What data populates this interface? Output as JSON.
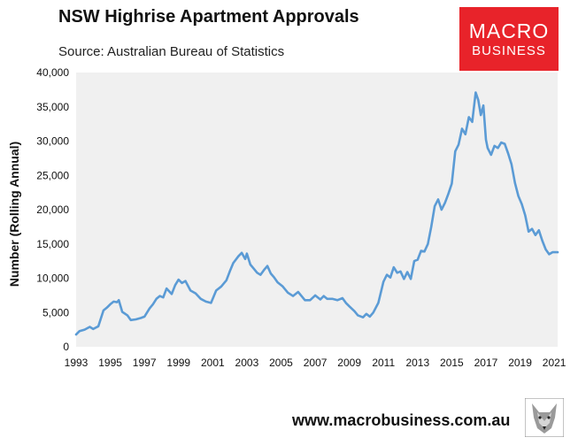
{
  "header": {
    "title": "NSW Highrise Apartment Approvals",
    "subtitle": "Source: Australian Bureau of Statistics"
  },
  "logo": {
    "line1": "MACRO",
    "line2": "BUSINESS",
    "bg_color": "#e8232a"
  },
  "footer": {
    "url": "www.macrobusiness.com.au",
    "icon": "wolf-icon"
  },
  "chart_data": {
    "type": "line",
    "title": "NSW Highrise Apartment Approvals",
    "xlabel": "",
    "ylabel": "Number (Rolling Annual)",
    "xlim": [
      1993,
      2021.2
    ],
    "ylim": [
      0,
      40000
    ],
    "x_ticks": [
      "1993",
      "1995",
      "1997",
      "1999",
      "2001",
      "2003",
      "2005",
      "2007",
      "2009",
      "2011",
      "2013",
      "2015",
      "2017",
      "2019",
      "2021"
    ],
    "y_ticks": [
      "0",
      "5,000",
      "10,000",
      "15,000",
      "20,000",
      "25,000",
      "30,000",
      "35,000",
      "40,000"
    ],
    "grid": false,
    "plot_background": "#f0f0f0",
    "series": [
      {
        "color": "#5b9bd5",
        "x": [
          1993.0,
          1993.2,
          1993.5,
          1993.8,
          1994.0,
          1994.3,
          1994.6,
          1994.8,
          1995.0,
          1995.2,
          1995.4,
          1995.5,
          1995.7,
          1996.0,
          1996.2,
          1996.5,
          1996.8,
          1997.0,
          1997.3,
          1997.5,
          1997.7,
          1997.9,
          1998.1,
          1998.3,
          1998.6,
          1998.8,
          1999.0,
          1999.2,
          1999.4,
          1999.7,
          2000.0,
          2000.3,
          2000.6,
          2000.9,
          2001.2,
          2001.5,
          2001.8,
          2002.0,
          2002.2,
          2002.5,
          2002.7,
          2002.9,
          2003.0,
          2003.2,
          2003.4,
          2003.6,
          2003.8,
          2004.0,
          2004.2,
          2004.4,
          2004.6,
          2004.8,
          2005.1,
          2005.4,
          2005.7,
          2006.0,
          2006.2,
          2006.4,
          2006.7,
          2007.0,
          2007.3,
          2007.5,
          2007.7,
          2008.0,
          2008.3,
          2008.6,
          2008.8,
          2009.0,
          2009.3,
          2009.5,
          2009.8,
          2010.0,
          2010.2,
          2010.4,
          2010.7,
          2011.0,
          2011.2,
          2011.4,
          2011.6,
          2011.8,
          2012.0,
          2012.2,
          2012.4,
          2012.6,
          2012.8,
          2013.0,
          2013.2,
          2013.4,
          2013.6,
          2013.8,
          2014.0,
          2014.2,
          2014.4,
          2014.6,
          2014.8,
          2015.0,
          2015.2,
          2015.4,
          2015.6,
          2015.8,
          2016.0,
          2016.2,
          2016.4,
          2016.55,
          2016.7,
          2016.85,
          2017.0,
          2017.1,
          2017.3,
          2017.5,
          2017.7,
          2017.9,
          2018.1,
          2018.3,
          2018.5,
          2018.7,
          2018.9,
          2019.1,
          2019.3,
          2019.5,
          2019.7,
          2019.9,
          2020.1,
          2020.3,
          2020.5,
          2020.7,
          2020.9,
          2021.0,
          2021.2
        ],
        "y": [
          1800,
          2300,
          2500,
          2900,
          2600,
          3000,
          5300,
          5700,
          6200,
          6600,
          6500,
          6800,
          5100,
          4600,
          3900,
          4000,
          4200,
          4400,
          5600,
          6200,
          7000,
          7400,
          7200,
          8500,
          7700,
          9000,
          9800,
          9300,
          9600,
          8200,
          7800,
          7000,
          6600,
          6400,
          8200,
          8800,
          9700,
          11000,
          12200,
          13200,
          13700,
          12800,
          13600,
          12000,
          11400,
          10800,
          10500,
          11200,
          11800,
          10700,
          10100,
          9400,
          8800,
          7900,
          7400,
          8000,
          7400,
          6800,
          6800,
          7500,
          6900,
          7400,
          7000,
          7000,
          6800,
          7100,
          6400,
          5900,
          5200,
          4600,
          4300,
          4800,
          4400,
          5000,
          6400,
          9500,
          10500,
          10100,
          11600,
          10800,
          11000,
          9900,
          10900,
          9900,
          12500,
          12700,
          14000,
          13900,
          15000,
          17500,
          20500,
          21500,
          20000,
          21000,
          22300,
          23800,
          28500,
          29500,
          31800,
          31000,
          33500,
          32800,
          37100,
          36000,
          33800,
          35200,
          30200,
          29000,
          28000,
          29300,
          29000,
          29800,
          29600,
          28200,
          26600,
          23900,
          22000,
          20800,
          19200,
          16800,
          17200,
          16300,
          17000,
          15500,
          14200,
          13500,
          13800,
          13800,
          13800
        ]
      }
    ]
  }
}
